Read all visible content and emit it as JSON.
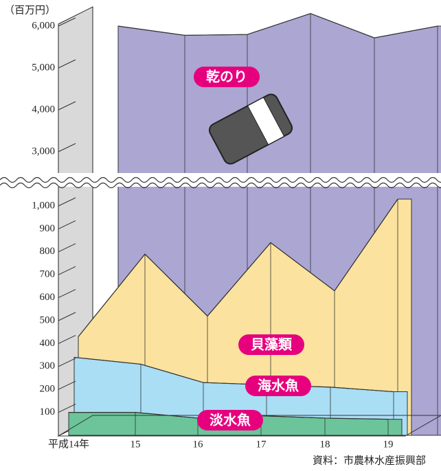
{
  "chart_data": {
    "type": "area",
    "unit_label": "（百万円）",
    "source": "資料：市農林水産振興部",
    "categories": [
      "平成14年",
      "15",
      "16",
      "17",
      "18",
      "19"
    ],
    "series": [
      {
        "name": "乾のり",
        "color": "#aba6d2",
        "values": [
          6000,
          5780,
          5800,
          6300,
          5720,
          6000
        ]
      },
      {
        "name": "貝藻類",
        "color": "#fbe29e",
        "values": [
          430,
          790,
          520,
          840,
          630,
          1030
        ]
      },
      {
        "name": "海水魚",
        "color": "#a9def5",
        "values": [
          340,
          310,
          230,
          220,
          210,
          190
        ]
      },
      {
        "name": "淡水魚",
        "color": "#6cc49a",
        "values": [
          100,
          100,
          75,
          85,
          75,
          70
        ]
      }
    ],
    "ylim": [
      0,
      6000
    ],
    "yticks": [
      100,
      200,
      300,
      400,
      500,
      600,
      700,
      800,
      900,
      {
        "value": 1000,
        "label": "1,000"
      },
      {
        "value": 3000,
        "label": "3,000"
      },
      {
        "value": 4000,
        "label": "4,000"
      },
      {
        "value": 5000,
        "label": "5,000"
      },
      {
        "value": 6000,
        "label": "6,000"
      }
    ],
    "axis_break": [
      1000,
      3000
    ]
  }
}
